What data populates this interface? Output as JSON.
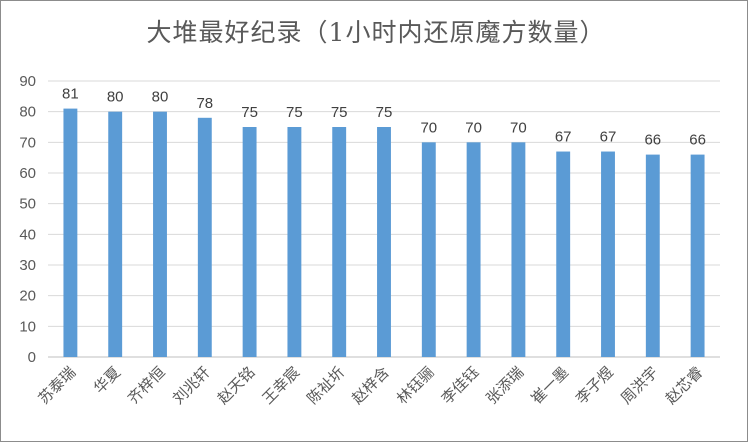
{
  "chart_data": {
    "type": "bar",
    "title": "大堆最好纪录（1小时内还原魔方数量）",
    "xlabel": "",
    "ylabel": "",
    "categories": [
      "苏泰瑞",
      "华夏",
      "齐梓恒",
      "刘兆轩",
      "赵天铭",
      "王幸宸",
      "陈祉圻",
      "赵梓含",
      "林钰骊",
      "李佳钰",
      "张添瑞",
      "崔一墨",
      "李子煜",
      "周洪宇",
      "赵芯睿"
    ],
    "values": [
      81,
      80,
      80,
      78,
      75,
      75,
      75,
      75,
      70,
      70,
      70,
      67,
      67,
      66,
      66
    ],
    "ylim": [
      0,
      90
    ],
    "yticks": [
      0,
      10,
      20,
      30,
      40,
      50,
      60,
      70,
      80,
      90
    ],
    "grid": true,
    "legend": "none",
    "bar_color": "#5b9bd5",
    "grid_color": "#d9d9d9"
  }
}
